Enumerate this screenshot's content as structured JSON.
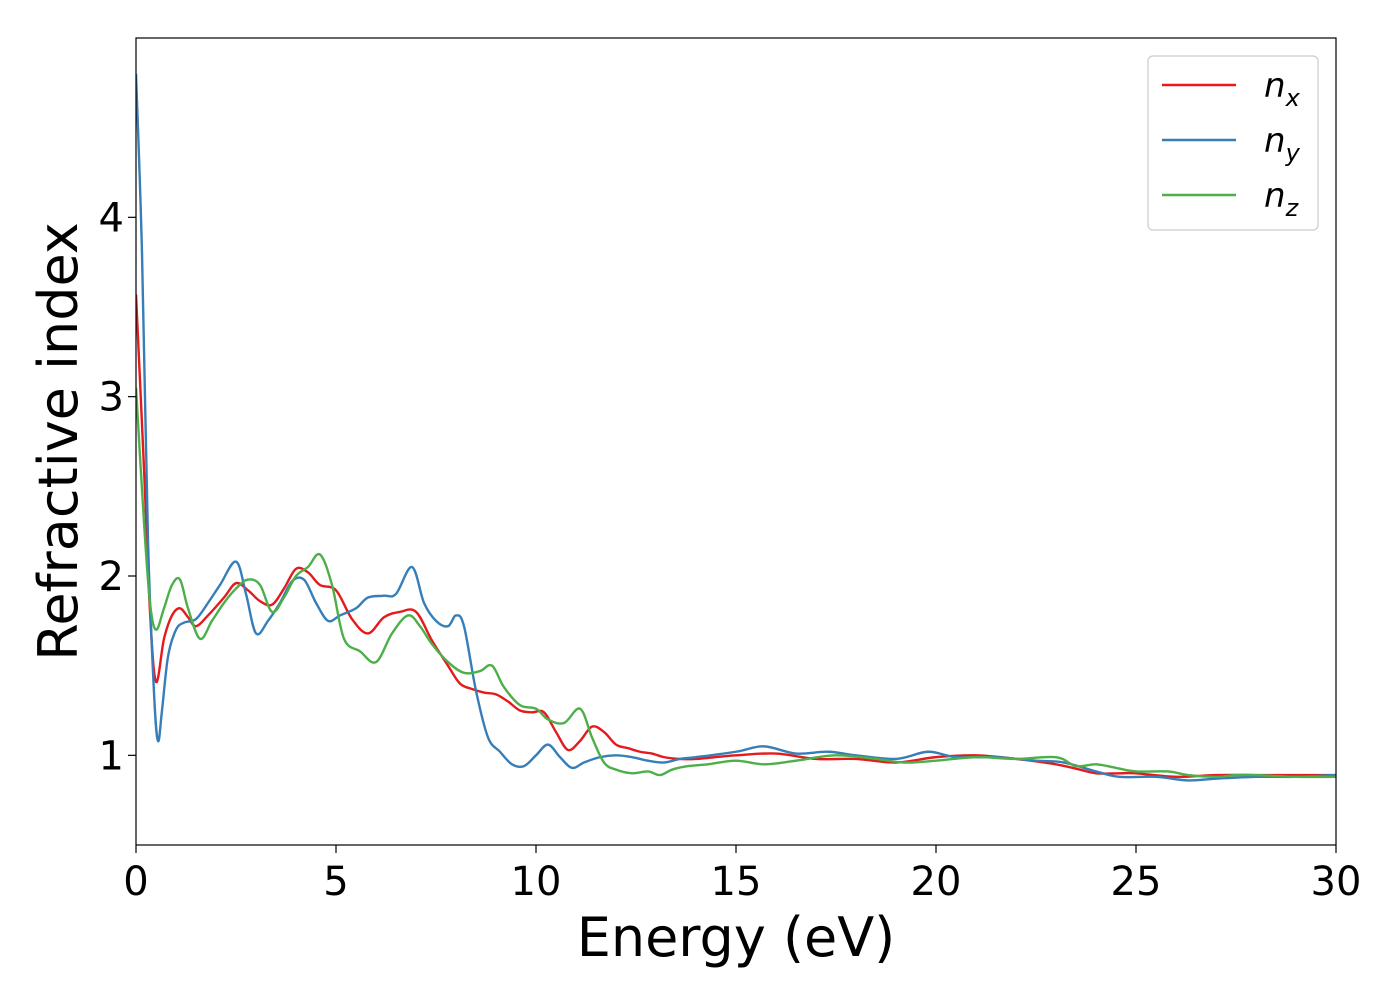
{
  "chart_data": {
    "type": "line",
    "title": "",
    "xlabel": "Energy (eV)",
    "ylabel": "Refractive index",
    "xlim": [
      0,
      30
    ],
    "ylim": [
      0.5,
      5.0
    ],
    "xticks": [
      0,
      5,
      10,
      15,
      20,
      25,
      30
    ],
    "yticks": [
      1,
      2,
      3,
      4
    ],
    "grid": false,
    "legend": "top-right",
    "series": [
      {
        "name": "n_x",
        "label_base": "n",
        "label_sub": "x",
        "color": "#e41a1c",
        "x": [
          0,
          0.2,
          0.35,
          0.5,
          0.7,
          0.9,
          1.1,
          1.3,
          1.5,
          1.8,
          2.2,
          2.5,
          2.8,
          3.1,
          3.4,
          3.7,
          4.0,
          4.3,
          4.6,
          5.0,
          5.4,
          5.8,
          6.2,
          6.6,
          7.0,
          7.4,
          7.8,
          8.1,
          8.4,
          8.7,
          9.0,
          9.3,
          9.6,
          9.9,
          10.2,
          10.5,
          10.8,
          11.1,
          11.4,
          11.7,
          12.0,
          12.3,
          12.6,
          12.9,
          13.2,
          13.6,
          14,
          15,
          16,
          17,
          18,
          19,
          20,
          21,
          22,
          23,
          23.6,
          24,
          24.6,
          25,
          26,
          27,
          28,
          29,
          30
        ],
        "y": [
          3.57,
          2.6,
          1.8,
          1.41,
          1.65,
          1.78,
          1.82,
          1.77,
          1.72,
          1.78,
          1.88,
          1.96,
          1.92,
          1.86,
          1.84,
          1.93,
          2.04,
          2.02,
          1.95,
          1.92,
          1.76,
          1.68,
          1.77,
          1.8,
          1.8,
          1.64,
          1.5,
          1.4,
          1.37,
          1.35,
          1.34,
          1.3,
          1.25,
          1.24,
          1.24,
          1.13,
          1.03,
          1.08,
          1.16,
          1.13,
          1.06,
          1.04,
          1.02,
          1.01,
          0.99,
          0.98,
          0.98,
          1.0,
          1.01,
          0.98,
          0.98,
          0.96,
          0.99,
          1.0,
          0.98,
          0.95,
          0.92,
          0.9,
          0.9,
          0.9,
          0.88,
          0.89,
          0.89,
          0.89,
          0.89
        ]
      },
      {
        "name": "n_y",
        "label_base": "n",
        "label_sub": "y",
        "color": "#377eb8",
        "x": [
          0,
          0.15,
          0.3,
          0.45,
          0.55,
          0.65,
          0.8,
          1.0,
          1.2,
          1.5,
          1.8,
          2.1,
          2.5,
          2.75,
          3.0,
          3.3,
          3.6,
          3.9,
          4.2,
          4.5,
          4.8,
          5.1,
          5.5,
          5.8,
          6.2,
          6.5,
          6.9,
          7.2,
          7.5,
          7.8,
          8.0,
          8.2,
          8.5,
          8.8,
          9.1,
          9.4,
          9.7,
          10.0,
          10.3,
          10.6,
          10.9,
          11.2,
          11.6,
          12.0,
          12.4,
          12.8,
          13.2,
          13.6,
          14,
          15,
          15.7,
          16.5,
          17.3,
          18,
          19,
          19.8,
          20.5,
          21.5,
          22.5,
          23.2,
          24,
          24.6,
          25.5,
          26.3,
          27,
          28,
          29,
          30
        ],
        "y": [
          4.8,
          3.8,
          2.2,
          1.35,
          1.08,
          1.25,
          1.55,
          1.7,
          1.74,
          1.76,
          1.85,
          1.95,
          2.08,
          1.9,
          1.68,
          1.75,
          1.85,
          1.97,
          1.98,
          1.85,
          1.75,
          1.78,
          1.82,
          1.88,
          1.89,
          1.9,
          2.05,
          1.85,
          1.75,
          1.72,
          1.78,
          1.72,
          1.36,
          1.1,
          1.02,
          0.95,
          0.94,
          1.0,
          1.06,
          0.99,
          0.93,
          0.96,
          0.99,
          1.0,
          0.99,
          0.97,
          0.96,
          0.98,
          0.99,
          1.02,
          1.05,
          1.01,
          1.02,
          1.0,
          0.98,
          1.02,
          0.99,
          0.99,
          0.97,
          0.96,
          0.91,
          0.88,
          0.88,
          0.86,
          0.87,
          0.88,
          0.88,
          0.89
        ]
      },
      {
        "name": "n_z",
        "label_base": "n",
        "label_sub": "z",
        "color": "#4daf4a",
        "x": [
          0,
          0.2,
          0.35,
          0.5,
          0.7,
          0.9,
          1.1,
          1.3,
          1.6,
          1.9,
          2.2,
          2.5,
          2.8,
          3.1,
          3.4,
          3.7,
          4.0,
          4.3,
          4.6,
          4.9,
          5.2,
          5.6,
          6.0,
          6.4,
          6.8,
          7.1,
          7.4,
          7.8,
          8.2,
          8.6,
          8.9,
          9.2,
          9.6,
          10.0,
          10.3,
          10.7,
          11.1,
          11.4,
          11.7,
          12.0,
          12.4,
          12.8,
          13.1,
          13.4,
          13.8,
          14.3,
          15,
          15.7,
          16.5,
          17.5,
          18.5,
          19.2,
          20,
          21,
          22,
          23,
          23.5,
          24,
          24.5,
          25,
          25.8,
          26.3,
          27,
          27.5,
          28,
          29,
          30
        ],
        "y": [
          3.05,
          2.3,
          1.85,
          1.7,
          1.82,
          1.95,
          1.98,
          1.82,
          1.65,
          1.75,
          1.85,
          1.93,
          1.98,
          1.95,
          1.8,
          1.88,
          2.0,
          2.05,
          2.12,
          1.95,
          1.65,
          1.58,
          1.52,
          1.68,
          1.78,
          1.72,
          1.62,
          1.52,
          1.46,
          1.47,
          1.5,
          1.38,
          1.28,
          1.26,
          1.2,
          1.18,
          1.26,
          1.1,
          0.96,
          0.92,
          0.9,
          0.91,
          0.89,
          0.92,
          0.94,
          0.95,
          0.97,
          0.95,
          0.97,
          1.0,
          0.98,
          0.96,
          0.97,
          0.99,
          0.98,
          0.99,
          0.94,
          0.95,
          0.93,
          0.91,
          0.91,
          0.89,
          0.88,
          0.89,
          0.89,
          0.88,
          0.88
        ]
      }
    ]
  }
}
